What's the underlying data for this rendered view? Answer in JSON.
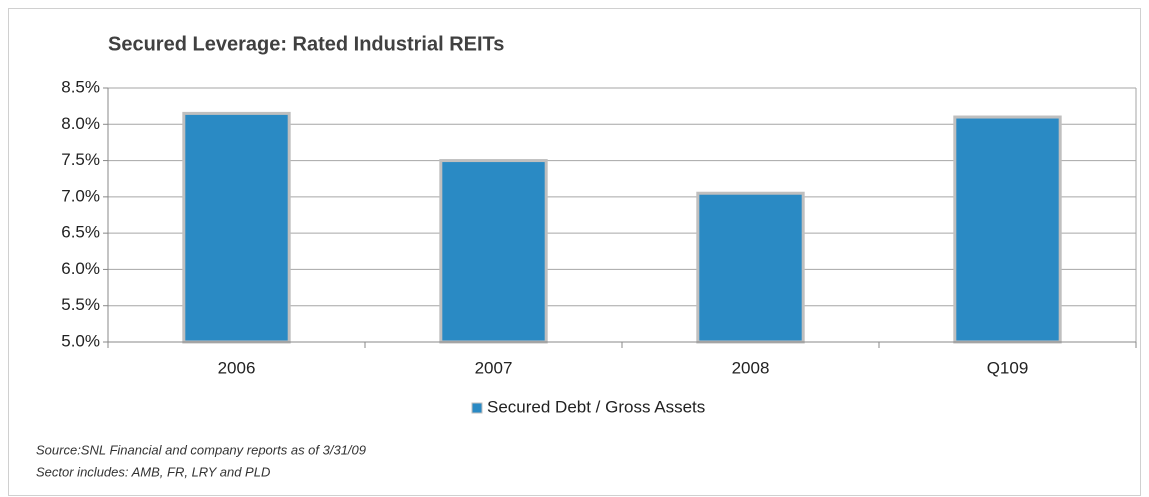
{
  "chart_data": {
    "type": "bar",
    "title": "Secured Leverage: Rated Industrial REITs",
    "categories": [
      "2006",
      "2007",
      "2008",
      "Q109"
    ],
    "series": [
      {
        "name": "Secured Debt / Gross Assets",
        "color": "#2a8ac4",
        "values": [
          8.15,
          7.5,
          7.05,
          8.1
        ]
      }
    ],
    "ylim": [
      5,
      8.5
    ],
    "yticks": [
      {
        "value": 5,
        "label": "5.0%"
      },
      {
        "value": 5.5,
        "label": "5.5%"
      },
      {
        "value": 6,
        "label": "6.0%"
      },
      {
        "value": 6.5,
        "label": "6.5%"
      },
      {
        "value": 7,
        "label": "7.0%"
      },
      {
        "value": 7.5,
        "label": "7.5%"
      },
      {
        "value": 8,
        "label": "8.0%"
      },
      {
        "value": 8.5,
        "label": "8.5%"
      }
    ],
    "grid": true,
    "legend": "bottom",
    "notes": [
      "Source:SNL Financial and company reports as of 3/31/09",
      "Sector includes: AMB, FR, LRY and PLD"
    ]
  }
}
